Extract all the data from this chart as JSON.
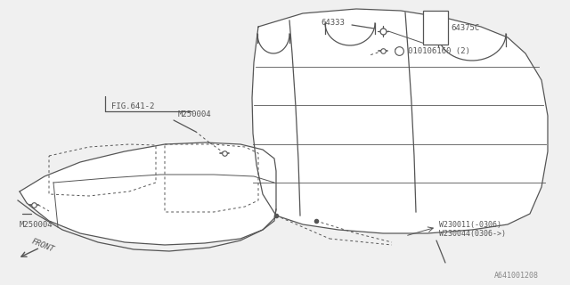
{
  "bg_color": "#f0f0f0",
  "line_color": "#555555",
  "lw": 0.9,
  "fig_width": 6.4,
  "fig_height": 3.2,
  "dpi": 100,
  "watermark": "A641001208",
  "labels": {
    "fig641": "FIG.641-2",
    "m250004_top": "M250004",
    "m250004_bot": "M250004",
    "l64333": "64333",
    "l64375C": "64375C",
    "l010106160": "010106160 (2)",
    "w230011": "W230011(-0306)",
    "w230044": "W230044(0306->)",
    "front": "FRONT"
  }
}
